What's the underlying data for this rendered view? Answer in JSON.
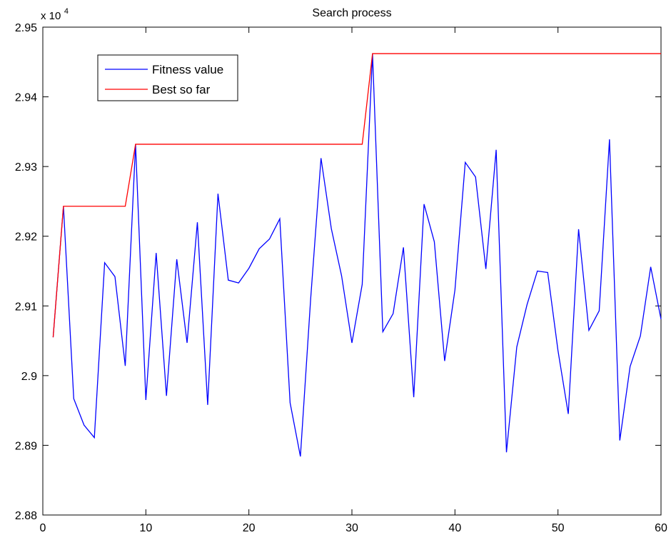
{
  "chart_data": {
    "type": "line",
    "title": "Search process",
    "xlabel": "",
    "ylabel": "",
    "y_scale_label": {
      "base": "x 10",
      "exponent": "4"
    },
    "x": [
      1,
      2,
      3,
      4,
      5,
      6,
      7,
      8,
      9,
      10,
      11,
      12,
      13,
      14,
      15,
      16,
      17,
      18,
      19,
      20,
      21,
      22,
      23,
      24,
      25,
      26,
      27,
      28,
      29,
      30,
      31,
      32,
      33,
      34,
      35,
      36,
      37,
      38,
      39,
      40,
      41,
      42,
      43,
      44,
      45,
      46,
      47,
      48,
      49,
      50,
      51,
      52,
      53,
      54,
      55,
      56,
      57,
      58,
      59,
      60
    ],
    "xlim": [
      0,
      60
    ],
    "ylim": [
      2.88,
      2.95
    ],
    "xticks": [
      0,
      10,
      20,
      30,
      40,
      50,
      60
    ],
    "yticks": [
      2.88,
      2.89,
      2.9,
      2.91,
      2.92,
      2.93,
      2.94,
      2.95
    ],
    "xtick_labels": [
      "0",
      "10",
      "20",
      "30",
      "40",
      "50",
      "60"
    ],
    "ytick_labels": [
      "2.88",
      "2.89",
      "2.9",
      "2.91",
      "2.92",
      "2.93",
      "2.94",
      "2.95"
    ],
    "grid": false,
    "legend_position": "top-left",
    "series": [
      {
        "name": "Fitness value",
        "color": "#0000ff",
        "values": [
          2.9055,
          2.9243,
          2.8967,
          2.8929,
          2.8911,
          2.9162,
          2.9142,
          2.9014,
          2.9332,
          2.8965,
          2.9176,
          2.8971,
          2.9167,
          2.9047,
          2.922,
          2.8958,
          2.9261,
          2.9137,
          2.9133,
          2.9154,
          2.9182,
          2.9196,
          2.9225,
          2.8961,
          2.8884,
          2.9111,
          2.9312,
          2.9211,
          2.9143,
          2.9047,
          2.9131,
          2.9462,
          2.9063,
          2.9089,
          2.9184,
          2.8969,
          2.9246,
          2.9192,
          2.9021,
          2.9123,
          2.9306,
          2.9285,
          2.9153,
          2.9324,
          2.889,
          2.9041,
          2.9102,
          2.915,
          2.9148,
          2.9036,
          2.8945,
          2.921,
          2.9065,
          2.9093,
          2.9339,
          2.8907,
          2.9013,
          2.9057,
          2.9156,
          2.9081
        ]
      },
      {
        "name": "Best so far",
        "color": "#ff0000",
        "values": [
          2.9055,
          2.9243,
          2.9243,
          2.9243,
          2.9243,
          2.9243,
          2.9243,
          2.9243,
          2.9332,
          2.9332,
          2.9332,
          2.9332,
          2.9332,
          2.9332,
          2.9332,
          2.9332,
          2.9332,
          2.9332,
          2.9332,
          2.9332,
          2.9332,
          2.9332,
          2.9332,
          2.9332,
          2.9332,
          2.9332,
          2.9332,
          2.9332,
          2.9332,
          2.9332,
          2.9332,
          2.9462,
          2.9462,
          2.9462,
          2.9462,
          2.9462,
          2.9462,
          2.9462,
          2.9462,
          2.9462,
          2.9462,
          2.9462,
          2.9462,
          2.9462,
          2.9462,
          2.9462,
          2.9462,
          2.9462,
          2.9462,
          2.9462,
          2.9462,
          2.9462,
          2.9462,
          2.9462,
          2.9462,
          2.9462,
          2.9462,
          2.9462,
          2.9462,
          2.9462
        ]
      }
    ]
  }
}
